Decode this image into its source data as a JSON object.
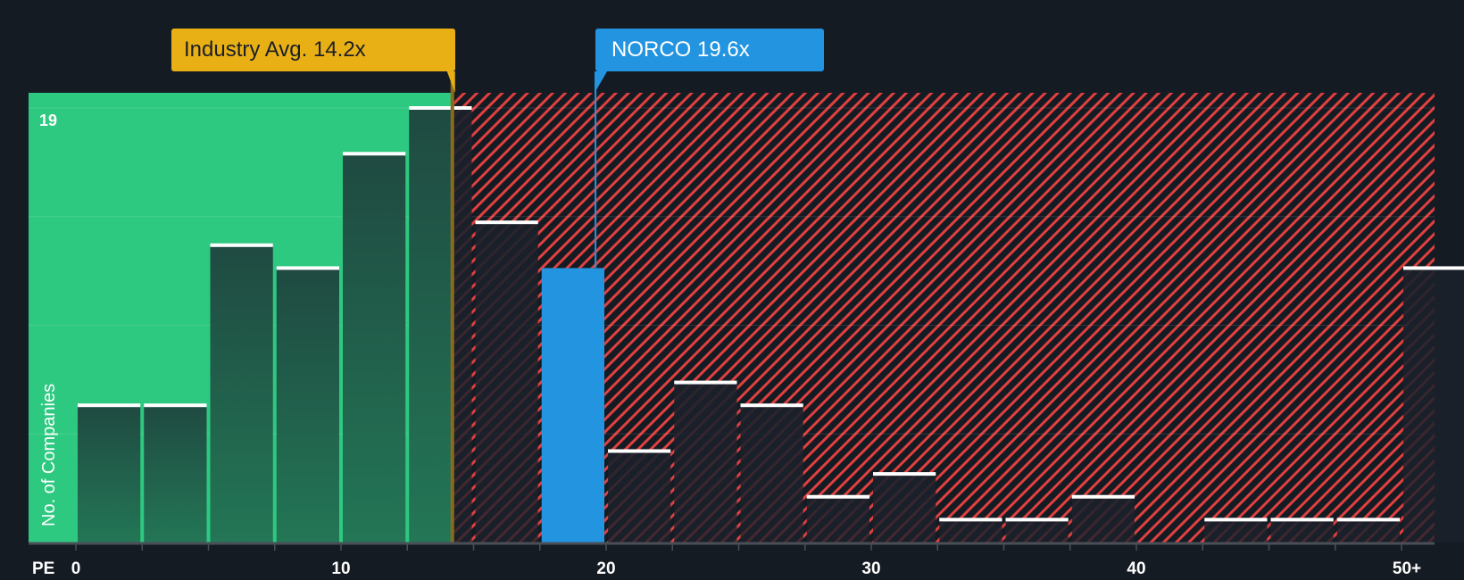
{
  "chart_data": {
    "type": "bar",
    "title": "",
    "xlabel": "PE",
    "ylabel": "No. of Companies",
    "ylim": [
      0,
      19
    ],
    "y_max_label": "19",
    "grid": true,
    "bin_width": 2.5,
    "categories": [
      "0-2.5",
      "2.5-5",
      "5-7.5",
      "7.5-10",
      "10-12.5",
      "12.5-15",
      "15-17.5",
      "17.5-20",
      "20-22.5",
      "22.5-25",
      "25-27.5",
      "27.5-30",
      "30-32.5",
      "32.5-35",
      "35-37.5",
      "37.5-40",
      "40-42.5",
      "42.5-45",
      "45-47.5",
      "47.5-50",
      "50+"
    ],
    "values": [
      6,
      6,
      13,
      12,
      17,
      19,
      14,
      12,
      4,
      7,
      6,
      2,
      3,
      1,
      1,
      2,
      0,
      1,
      1,
      1,
      12
    ],
    "x_tick_labels": [
      "0",
      "10",
      "20",
      "30",
      "40",
      "50+"
    ],
    "x_tick_values": [
      0,
      10,
      20,
      30,
      40,
      50
    ],
    "annotations": [
      {
        "label": "Industry Avg. 14.2x",
        "x": 14.2,
        "color": "#e9b016"
      },
      {
        "label": "NORCO 19.6x",
        "x": 19.6,
        "color": "#2394e0",
        "highlight_bin": "17.5-20"
      }
    ],
    "regions": [
      {
        "name": "below-industry-avg",
        "from": 0,
        "to": 14.2,
        "color": "#2ec980"
      },
      {
        "name": "above-industry-avg",
        "from": 14.2,
        "to": 52.5,
        "color": "#e0403f",
        "pattern": "diagonal-hatch"
      }
    ]
  },
  "labels": {
    "industry_callout": "Industry Avg. 14.2x",
    "company_callout": "NORCO 19.6x",
    "y_axis_title": "No. of Companies",
    "x_axis_prefix": "PE",
    "y_max": "19",
    "x_ticks": [
      "0",
      "10",
      "20",
      "30",
      "40",
      "50+"
    ]
  },
  "colors": {
    "background": "#151b23",
    "green_region": "#2ec980",
    "red_hatch": "#e0403f",
    "bar_dark_green_top": "#1f4a41",
    "bar_dark_green_bottom": "#237656",
    "highlight_bar": "#2394e0",
    "industry_line": "#e9b016",
    "company_line": "#2394e0"
  }
}
